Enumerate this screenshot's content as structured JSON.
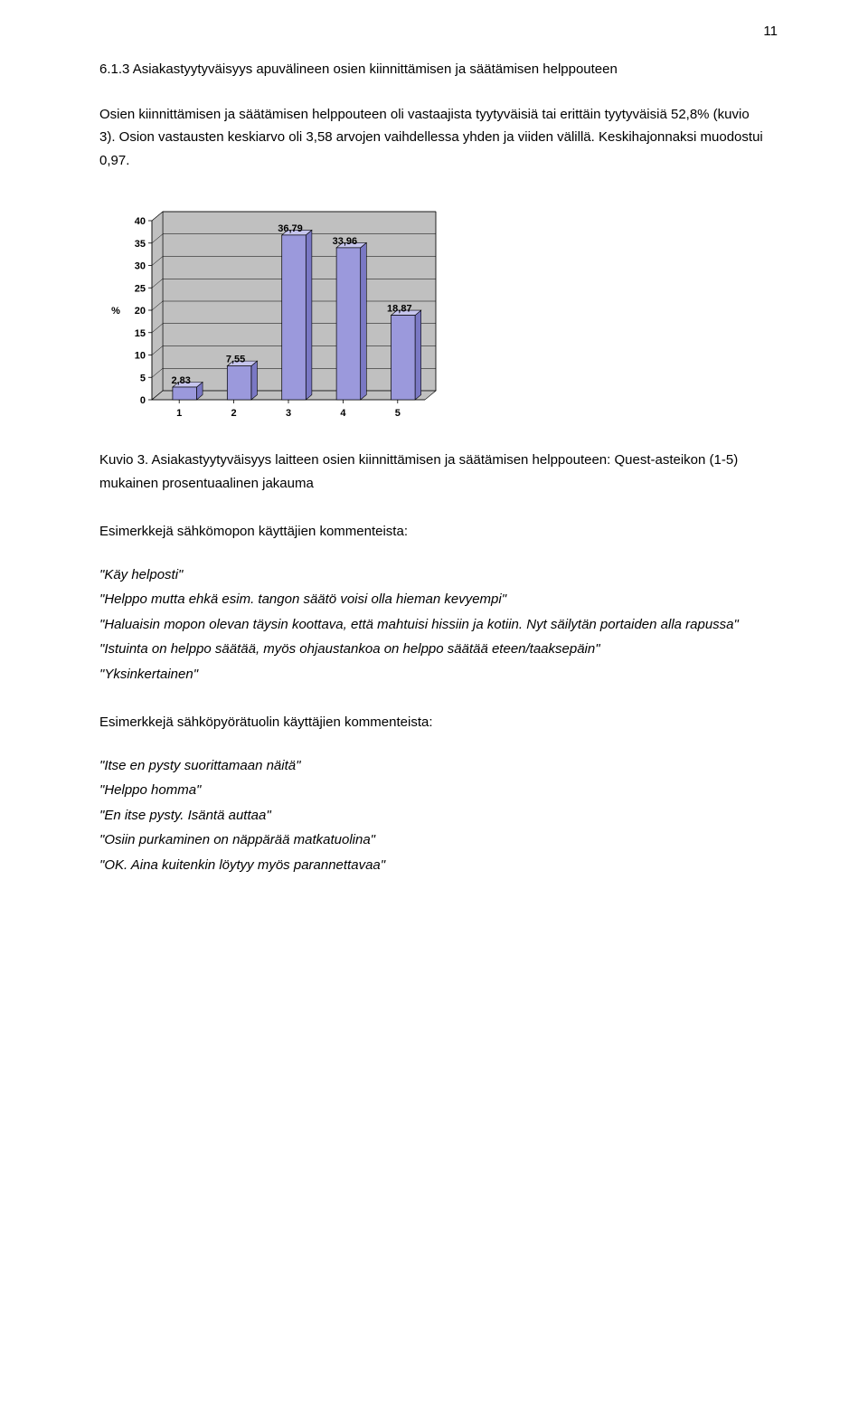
{
  "page_number": "11",
  "heading": "6.1.3 Asiakastyytyväisyys apuvälineen osien kiinnittämisen ja säätämisen helppouteen",
  "intro_para": "Osien kiinnittämisen ja säätämisen helppouteen oli vastaajista tyytyväisiä tai erittäin tyytyväisiä 52,8% (kuvio 3). Osion vastausten keskiarvo oli 3,58 arvojen vaihdellessa yhden ja viiden välillä. Keskihajonnaksi muodostui 0,97.",
  "chart": {
    "type": "bar",
    "categories": [
      "1",
      "2",
      "3",
      "4",
      "5"
    ],
    "values": [
      2.83,
      7.55,
      36.79,
      33.96,
      18.87
    ],
    "value_labels": [
      "2,83",
      "7,55",
      "36,79",
      "33,96",
      "18,87"
    ],
    "bar_face_color": "#9b99dc",
    "bar_side_color": "#7a78c4",
    "bar_top_color": "#c6c5ee",
    "plot_bg": "#ffffff",
    "backwall_color": "#c0c0c0",
    "floor_color": "#c0c0c0",
    "axis_color": "#000000",
    "gridline_color": "#000000",
    "ylabel": "%",
    "ylim": [
      0,
      40
    ],
    "ytick_step": 5,
    "yticks": [
      0,
      5,
      10,
      15,
      20,
      25,
      30,
      35,
      40
    ],
    "label_fontsize": 11,
    "tick_fontsize": 11,
    "bar_width": 0.44
  },
  "caption": "Kuvio 3. Asiakastyytyväisyys laitteen osien kiinnittämisen ja säätämisen helppouteen: Quest-asteikon (1-5) mukainen  prosentuaalinen jakauma",
  "subhead1": "Esimerkkejä sähkömopon käyttäjien kommenteista:",
  "quotes1": [
    "\"Käy helposti\"",
    "\"Helppo mutta ehkä esim. tangon säätö voisi olla hieman kevyempi\"",
    "\"Haluaisin mopon olevan täysin koottava, että mahtuisi hissiin ja kotiin. Nyt säilytän portaiden alla rapussa\"",
    "\"Istuinta on helppo säätää, myös ohjaustankoa on helppo säätää eteen/taaksepäin\"",
    "\"Yksinkertainen\""
  ],
  "subhead2": "Esimerkkejä sähköpyörätuolin käyttäjien kommenteista:",
  "quotes2": [
    "\"Itse en pysty suorittamaan näitä\"",
    "\"Helppo homma\"",
    "\"En itse pysty. Isäntä auttaa\"",
    "\"Osiin purkaminen on näppärää matkatuolina\"",
    "\"OK. Aina kuitenkin löytyy myös parannettavaa\""
  ]
}
